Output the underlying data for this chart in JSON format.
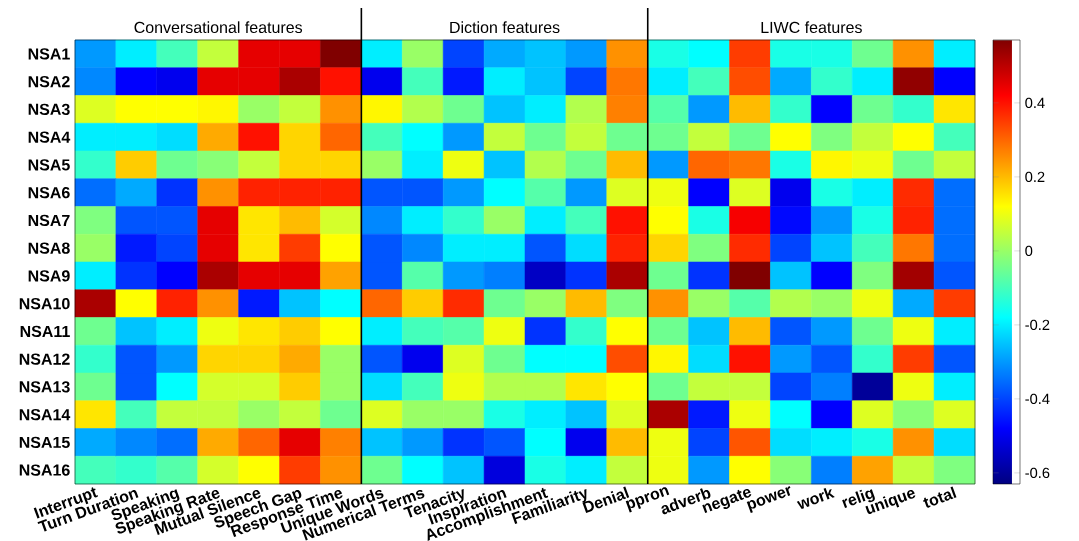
{
  "chart_data": {
    "type": "heatmap",
    "categories": [
      "Interrupt",
      "Turn Duration",
      "Speaking",
      "Speaking Rate",
      "Mutual Silence",
      "Speech Gap",
      "Response Time",
      "Unique Words",
      "Numerical Terms",
      "Tenacity",
      "Inspiration",
      "Accomplishment",
      "Familiarity",
      "Denial",
      "ppron",
      "adverb",
      "negate",
      "power",
      "work",
      "relig",
      "unique",
      "total"
    ],
    "y_categories": [
      "NSA1",
      "NSA2",
      "NSA3",
      "NSA4",
      "NSA5",
      "NSA6",
      "NSA7",
      "NSA8",
      "NSA9",
      "NSA10",
      "NSA11",
      "NSA12",
      "NSA13",
      "NSA14",
      "NSA15",
      "NSA16"
    ],
    "cells": [
      [
        -0.3,
        -0.2,
        -0.1,
        0.05,
        0.45,
        0.45,
        0.57,
        -0.2,
        0.0,
        -0.4,
        -0.28,
        -0.25,
        -0.3,
        0.25,
        -0.15,
        -0.18,
        0.35,
        -0.15,
        -0.15,
        -0.05,
        0.25,
        -0.2
      ],
      [
        -0.32,
        -0.48,
        -0.5,
        0.45,
        0.45,
        0.52,
        0.4,
        -0.5,
        -0.1,
        -0.45,
        -0.2,
        -0.25,
        -0.4,
        0.28,
        -0.2,
        -0.1,
        0.33,
        -0.28,
        -0.12,
        -0.2,
        0.55,
        -0.48
      ],
      [
        0.08,
        0.12,
        0.12,
        0.13,
        0.0,
        0.05,
        0.25,
        0.13,
        0.03,
        -0.05,
        -0.25,
        -0.2,
        0.03,
        0.27,
        -0.08,
        -0.3,
        0.2,
        -0.12,
        -0.48,
        -0.05,
        -0.12,
        0.15
      ],
      [
        -0.2,
        -0.2,
        -0.22,
        0.22,
        0.4,
        0.17,
        0.3,
        -0.1,
        -0.18,
        -0.3,
        0.05,
        -0.05,
        0.05,
        -0.05,
        -0.05,
        0.05,
        -0.05,
        0.12,
        -0.03,
        0.05,
        0.12,
        -0.1
      ],
      [
        -0.12,
        0.18,
        -0.05,
        -0.02,
        0.05,
        0.17,
        0.17,
        0.0,
        -0.2,
        0.1,
        -0.25,
        0.03,
        -0.05,
        0.2,
        -0.3,
        0.3,
        0.28,
        -0.15,
        0.13,
        0.1,
        -0.05,
        0.05
      ],
      [
        -0.35,
        -0.28,
        -0.42,
        0.25,
        0.38,
        0.38,
        0.38,
        -0.38,
        -0.38,
        -0.3,
        -0.18,
        -0.08,
        -0.3,
        0.08,
        0.1,
        -0.48,
        0.08,
        -0.5,
        -0.15,
        -0.2,
        0.37,
        -0.35
      ],
      [
        -0.03,
        -0.38,
        -0.38,
        0.45,
        0.15,
        0.2,
        0.07,
        -0.32,
        -0.2,
        -0.12,
        0.0,
        -0.2,
        -0.1,
        0.4,
        0.12,
        -0.15,
        0.43,
        -0.47,
        -0.3,
        -0.15,
        0.38,
        -0.35
      ],
      [
        0.0,
        -0.45,
        -0.4,
        0.45,
        0.15,
        0.35,
        0.12,
        -0.38,
        -0.32,
        -0.2,
        -0.2,
        -0.38,
        -0.22,
        0.38,
        0.17,
        -0.03,
        0.37,
        -0.4,
        -0.25,
        -0.1,
        0.28,
        -0.35
      ],
      [
        -0.2,
        -0.42,
        -0.48,
        0.52,
        0.45,
        0.45,
        0.23,
        -0.38,
        -0.08,
        -0.3,
        -0.33,
        -0.55,
        -0.42,
        0.52,
        -0.05,
        -0.42,
        0.57,
        -0.25,
        -0.48,
        -0.03,
        0.53,
        -0.38
      ],
      [
        0.52,
        0.12,
        0.38,
        0.25,
        -0.45,
        -0.25,
        -0.18,
        0.3,
        0.18,
        0.37,
        -0.05,
        0.0,
        0.2,
        -0.03,
        0.25,
        0.0,
        -0.08,
        0.03,
        0.0,
        0.1,
        -0.28,
        0.35
      ],
      [
        -0.05,
        -0.25,
        -0.2,
        0.1,
        0.15,
        0.18,
        0.12,
        -0.2,
        -0.1,
        -0.08,
        0.1,
        -0.42,
        -0.12,
        0.12,
        -0.05,
        -0.25,
        0.2,
        -0.38,
        -0.3,
        -0.05,
        0.1,
        -0.2
      ],
      [
        -0.12,
        -0.38,
        -0.3,
        0.17,
        0.17,
        0.22,
        0.0,
        -0.38,
        -0.5,
        0.08,
        -0.05,
        -0.18,
        -0.18,
        0.33,
        0.13,
        -0.22,
        0.4,
        -0.3,
        -0.38,
        -0.12,
        0.35,
        -0.38
      ],
      [
        -0.05,
        -0.38,
        -0.18,
        0.07,
        0.07,
        0.18,
        0.0,
        -0.22,
        -0.1,
        0.1,
        0.03,
        0.03,
        0.15,
        0.12,
        -0.05,
        0.05,
        0.05,
        -0.4,
        -0.33,
        -0.6,
        0.1,
        -0.2
      ],
      [
        0.15,
        -0.1,
        0.05,
        0.05,
        0.0,
        0.05,
        -0.05,
        0.08,
        0.0,
        0.0,
        -0.15,
        -0.2,
        -0.25,
        0.08,
        0.52,
        -0.45,
        0.1,
        -0.18,
        -0.48,
        0.08,
        -0.02,
        0.08
      ],
      [
        -0.28,
        -0.32,
        -0.35,
        0.22,
        0.3,
        0.45,
        0.27,
        -0.25,
        -0.3,
        -0.42,
        -0.38,
        -0.18,
        -0.5,
        0.2,
        0.1,
        -0.4,
        0.32,
        -0.22,
        -0.2,
        -0.15,
        0.25,
        -0.22
      ],
      [
        -0.1,
        -0.12,
        -0.08,
        0.07,
        0.12,
        0.35,
        0.25,
        -0.05,
        -0.18,
        -0.25,
        -0.52,
        -0.15,
        -0.2,
        0.05,
        0.1,
        -0.3,
        0.12,
        -0.02,
        -0.33,
        0.23,
        0.05,
        -0.03
      ]
    ],
    "clim": [
      -0.63,
      0.57
    ],
    "cticks": [
      -0.6,
      -0.4,
      -0.2,
      0,
      0.2,
      0.4
    ],
    "annotations": [
      "Conversational features",
      "Diction features",
      "LIWC features"
    ]
  }
}
